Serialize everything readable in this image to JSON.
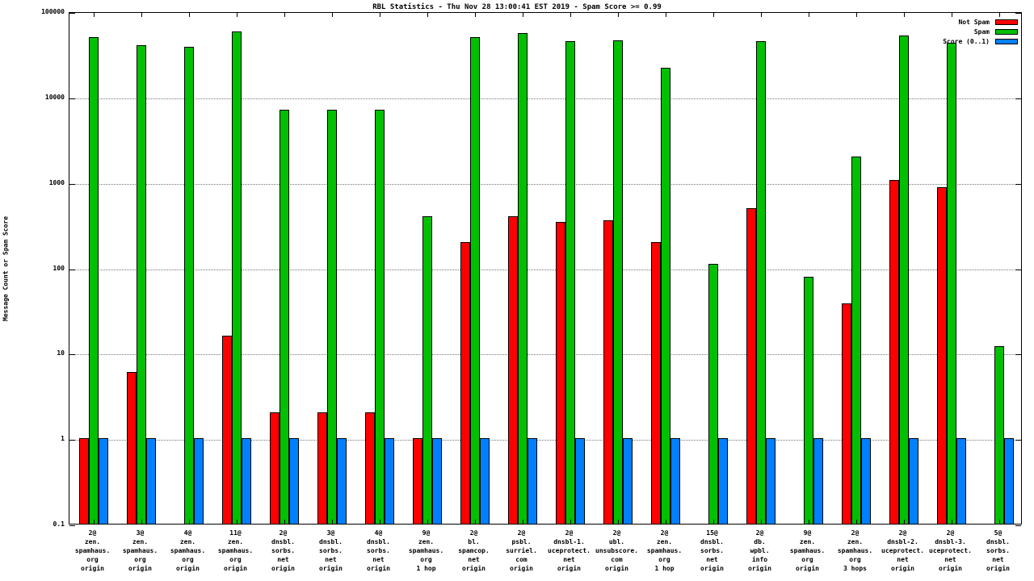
{
  "title": "RBL Statistics - Thu Nov 28 13:00:41 EST 2019 - Spam Score >= 0.99",
  "ylabel": "Message Count or Spam Score",
  "legend": [
    {
      "label": "Not Spam",
      "color": "#ff0000"
    },
    {
      "label": "Spam",
      "color": "#00c000"
    },
    {
      "label": "Score (0..1)",
      "color": "#0080ff"
    }
  ],
  "chart_data": {
    "type": "bar",
    "scale": "log",
    "grid": "horizontal-dotted",
    "legend_position": "top-right",
    "ylim": [
      0.1,
      100000
    ],
    "yticks": [
      "100000",
      "10000",
      "1000",
      "100",
      "10",
      "1",
      "0.1"
    ],
    "categories": [
      [
        "2@",
        "zen.",
        "spamhaus.",
        "org",
        "origin"
      ],
      [
        "3@",
        "zen.",
        "spamhaus.",
        "org",
        "origin"
      ],
      [
        "4@",
        "zen.",
        "spamhaus.",
        "org",
        "origin"
      ],
      [
        "11@",
        "zen.",
        "spamhaus.",
        "org",
        "origin"
      ],
      [
        "2@",
        "dnsbl.",
        "sorbs.",
        "net",
        "origin"
      ],
      [
        "3@",
        "dnsbl.",
        "sorbs.",
        "net",
        "origin"
      ],
      [
        "4@",
        "dnsbl.",
        "sorbs.",
        "net",
        "origin"
      ],
      [
        "9@",
        "zen.",
        "spamhaus.",
        "org",
        "1 hop"
      ],
      [
        "2@",
        "bl.",
        "spamcop.",
        "net",
        "origin"
      ],
      [
        "2@",
        "psbl.",
        "surriel.",
        "com",
        "origin"
      ],
      [
        "2@",
        "dnsbl-1.",
        "uceprotect.",
        "net",
        "origin"
      ],
      [
        "2@",
        "ubl.",
        "unsubscore.",
        "com",
        "origin"
      ],
      [
        "2@",
        "zen.",
        "spamhaus.",
        "org",
        "1 hop"
      ],
      [
        "15@",
        "dnsbl.",
        "sorbs.",
        "net",
        "origin"
      ],
      [
        "2@",
        "db.",
        "wpbl.",
        "info",
        "origin"
      ],
      [
        "9@",
        "zen.",
        "spamhaus.",
        "org",
        "origin"
      ],
      [
        "2@",
        "zen.",
        "spamhaus.",
        "org",
        "3 hops"
      ],
      [
        "2@",
        "dnsbl-2.",
        "uceprotect.",
        "net",
        "origin"
      ],
      [
        "2@",
        "dnsbl-3.",
        "uceprotect.",
        "net",
        "origin"
      ],
      [
        "5@",
        "dnsbl.",
        "sorbs.",
        "net",
        "origin"
      ]
    ],
    "series": [
      {
        "name": "Not Spam",
        "color": "#ff0000",
        "values": [
          1,
          6,
          null,
          16,
          2,
          2,
          2,
          1,
          200,
          400,
          340,
          360,
          200,
          null,
          500,
          null,
          38,
          1050,
          870,
          null
        ]
      },
      {
        "name": "Spam",
        "color": "#00c000",
        "values": [
          50000,
          40000,
          38000,
          58000,
          7000,
          7000,
          7000,
          400,
          50000,
          55000,
          45000,
          46000,
          22000,
          110,
          45000,
          78,
          2000,
          52000,
          43000,
          12
        ]
      },
      {
        "name": "Score (0..1)",
        "color": "#0080ff",
        "values": [
          1,
          1,
          1,
          1,
          1,
          1,
          1,
          1,
          1,
          1,
          1,
          1,
          1,
          1,
          1,
          1,
          1,
          1,
          1,
          1
        ]
      }
    ]
  }
}
